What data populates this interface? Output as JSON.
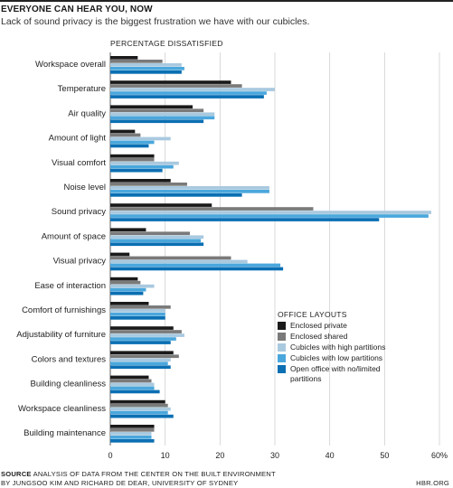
{
  "header": {
    "title": "EVERYONE CAN HEAR YOU, NOW",
    "subtitle": "Lack of sound privacy is the biggest frustration we have with our cubicles."
  },
  "footer": {
    "source_label": "SOURCE",
    "source_text": "ANALYSIS OF DATA FROM THE CENTER ON THE BUILT ENVIRONMENT",
    "source_line2": "BY JUNGSOO KIM AND RICHARD DE DEAR, UNIVERSITY OF SYDNEY",
    "credit": "HBR.ORG"
  },
  "chart_data": {
    "type": "bar",
    "orientation": "horizontal",
    "title": "EVERYONE CAN HEAR YOU, NOW",
    "subtitle": "Lack of sound privacy is the biggest frustration we have with our cubicles.",
    "metric_label": "PERCENTAGE DISSATISFIED",
    "xlim": [
      0,
      60
    ],
    "xticks": [
      0,
      10,
      20,
      30,
      40,
      50,
      60
    ],
    "xtick_labels": [
      "0",
      "10",
      "20",
      "30",
      "40",
      "50",
      "60%"
    ],
    "grid": true,
    "legend_title": "OFFICE LAYOUTS",
    "legend_position": "bottom-right",
    "categories": [
      "Workspace overall",
      "Temperature",
      "Air quality",
      "Amount of light",
      "Visual comfort",
      "Noise level",
      "Sound privacy",
      "Amount of space",
      "Visual privacy",
      "Ease of interaction",
      "Comfort of furnishings",
      "Adjustability of furniture",
      "Colors and textures",
      "Building cleanliness",
      "Workspace cleanliness",
      "Building maintenance"
    ],
    "series": [
      {
        "name": "Enclosed private",
        "color": "#1a1a1a",
        "values": [
          5,
          22,
          15,
          4.5,
          8,
          11,
          18.5,
          6.5,
          3.5,
          5,
          7,
          11.5,
          11.5,
          7,
          10,
          8
        ]
      },
      {
        "name": "Enclosed shared",
        "color": "#7a7a7a",
        "values": [
          9.5,
          24,
          17,
          5.5,
          8,
          14,
          37,
          14.5,
          22,
          5.5,
          11,
          13,
          12.5,
          7.5,
          10.5,
          8
        ]
      },
      {
        "name": "Cubicles with high partitions",
        "color": "#a9c9df",
        "values": [
          13,
          30,
          19,
          11,
          12.5,
          29,
          58.5,
          17,
          25,
          8,
          10,
          13.5,
          11,
          8,
          11,
          7.5
        ]
      },
      {
        "name": "Cubicles with low partitions",
        "color": "#4aa7dc",
        "values": [
          13.5,
          28.5,
          19,
          8,
          11.5,
          29,
          58,
          16.5,
          31,
          6.5,
          10,
          12,
          10.5,
          8,
          10.5,
          7.5
        ]
      },
      {
        "name": "Open office with no/limited partitions",
        "color": "#0b6fb3",
        "values": [
          13,
          28,
          17,
          7,
          9.5,
          24,
          49,
          17,
          31.5,
          6,
          10,
          11,
          11,
          9,
          11.5,
          8
        ]
      }
    ]
  }
}
